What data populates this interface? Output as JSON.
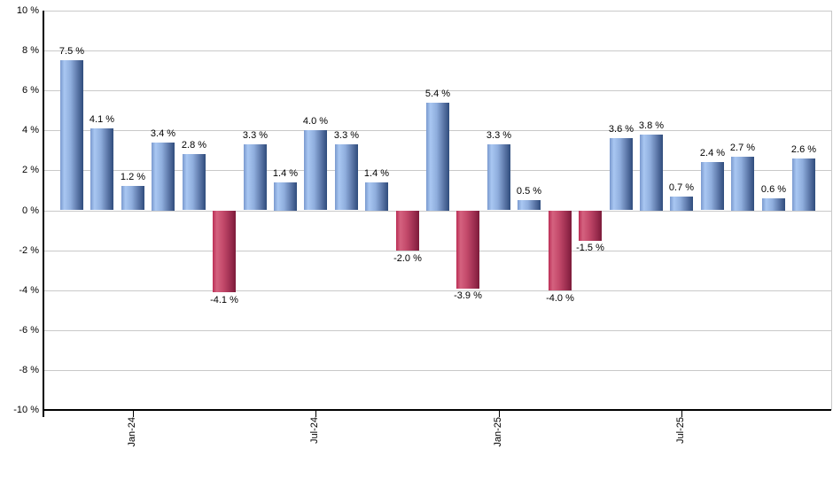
{
  "chart_data": {
    "type": "bar",
    "title": "",
    "xlabel": "",
    "ylabel": "",
    "ylim": [
      -10,
      10
    ],
    "y_tick_step": 2,
    "grid": true,
    "legend": false,
    "values": [
      7.5,
      4.1,
      1.2,
      3.4,
      2.8,
      -4.1,
      3.3,
      1.4,
      4.0,
      3.3,
      1.4,
      -2.0,
      5.4,
      -3.9,
      3.3,
      0.5,
      -4.0,
      -1.5,
      3.6,
      3.8,
      0.7,
      2.4,
      2.7,
      0.6,
      2.6
    ],
    "bar_labels": [
      "7.5 %",
      "4.1 %",
      "1.2 %",
      "3.4 %",
      "2.8 %",
      "-4.1 %",
      "3.3 %",
      "1.4 %",
      "4.0 %",
      "3.3 %",
      "1.4 %",
      "-2.0 %",
      "5.4 %",
      "-3.9 %",
      "3.3 %",
      "0.5 %",
      "-4.0 %",
      "-1.5 %",
      "3.6 %",
      "3.8 %",
      "0.7 %",
      "2.4 %",
      "2.7 %",
      "0.6 %",
      "2.6 %"
    ],
    "x_ticks": [
      {
        "label": "Jan-24",
        "bar_index": 2
      },
      {
        "label": "Jul-24",
        "bar_index": 8
      },
      {
        "label": "Jan-25",
        "bar_index": 14
      },
      {
        "label": "Jul-25",
        "bar_index": 20
      }
    ],
    "y_ticks": [
      {
        "value": 10,
        "label": "10 %"
      },
      {
        "value": 8,
        "label": "8 %"
      },
      {
        "value": 6,
        "label": "6 %"
      },
      {
        "value": 4,
        "label": "4 %"
      },
      {
        "value": 2,
        "label": "2 %"
      },
      {
        "value": 0,
        "label": "0 %"
      },
      {
        "value": -2,
        "label": "-2 %"
      },
      {
        "value": -4,
        "label": "-4 %"
      },
      {
        "value": -6,
        "label": "-6 %"
      },
      {
        "value": -8,
        "label": "-8 %"
      },
      {
        "value": -10,
        "label": "-10 %"
      }
    ],
    "colors": {
      "positive_bar_light": "#a9c7f2",
      "positive_bar_dark": "#2f4c7c",
      "negative_bar_light": "#d4627f",
      "negative_bar_dark": "#7c1b3a",
      "gridline": "#c9c9c9",
      "axis": "#000000",
      "background": "#ffffff",
      "label_text": "#000000"
    }
  }
}
